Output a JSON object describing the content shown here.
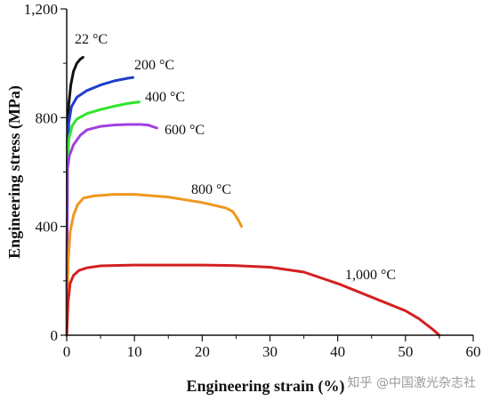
{
  "chart_data": {
    "type": "line",
    "xlabel": "Engineering strain (%)",
    "ylabel": "Engineering stress (MPa)",
    "xlim": [
      0,
      60
    ],
    "ylim": [
      0,
      1200
    ],
    "x_ticks": [
      "0",
      "10",
      "20",
      "30",
      "40",
      "50",
      "60"
    ],
    "y_ticks": [
      "0",
      "400",
      "800",
      "1,200"
    ],
    "grid": false,
    "series": [
      {
        "name": "22 °C",
        "color": "#111111",
        "x": [
          0,
          0.1,
          0.3,
          0.6,
          1.0,
          1.5,
          2.0,
          2.4
        ],
        "y": [
          0,
          720,
          850,
          920,
          970,
          1000,
          1015,
          1022
        ]
      },
      {
        "name": "200 °C",
        "color": "#1f3fc8",
        "x": [
          0,
          0.1,
          0.3,
          0.7,
          1.5,
          3,
          5,
          7,
          9,
          9.8
        ],
        "y": [
          0,
          640,
          780,
          840,
          875,
          900,
          920,
          935,
          945,
          948
        ]
      },
      {
        "name": "400 °C",
        "color": "#2ee52e",
        "x": [
          0,
          0.1,
          0.3,
          0.8,
          1.5,
          3,
          5,
          7,
          9,
          10.7
        ],
        "y": [
          0,
          620,
          720,
          770,
          795,
          815,
          830,
          842,
          852,
          858
        ]
      },
      {
        "name": "600 °C",
        "color": "#a040e0",
        "x": [
          0,
          0.1,
          0.4,
          1.0,
          2,
          3,
          5,
          7,
          9,
          11,
          12,
          13.3
        ],
        "y": [
          0,
          610,
          660,
          700,
          735,
          755,
          768,
          773,
          775,
          775,
          773,
          762
        ]
      },
      {
        "name": "800 °C",
        "color": "#f0961e",
        "x": [
          0,
          0.2,
          0.5,
          1.0,
          1.6,
          2.5,
          4,
          7,
          10,
          15,
          20,
          23.5,
          24.5,
          25.3,
          25.8
        ],
        "y": [
          0,
          260,
          380,
          440,
          480,
          505,
          512,
          518,
          518,
          508,
          488,
          468,
          455,
          425,
          400
        ]
      },
      {
        "name": "1,000 °C",
        "color": "#d42020",
        "x": [
          0,
          0.2,
          0.5,
          1.0,
          1.8,
          3,
          5,
          10,
          15,
          20,
          25,
          30,
          35,
          40,
          45,
          50,
          52,
          54,
          55
        ],
        "y": [
          0,
          120,
          190,
          220,
          238,
          248,
          255,
          258,
          258,
          258,
          256,
          250,
          232,
          190,
          140,
          90,
          60,
          22,
          0
        ]
      }
    ]
  },
  "watermark": "知乎 @中国激光杂志社"
}
